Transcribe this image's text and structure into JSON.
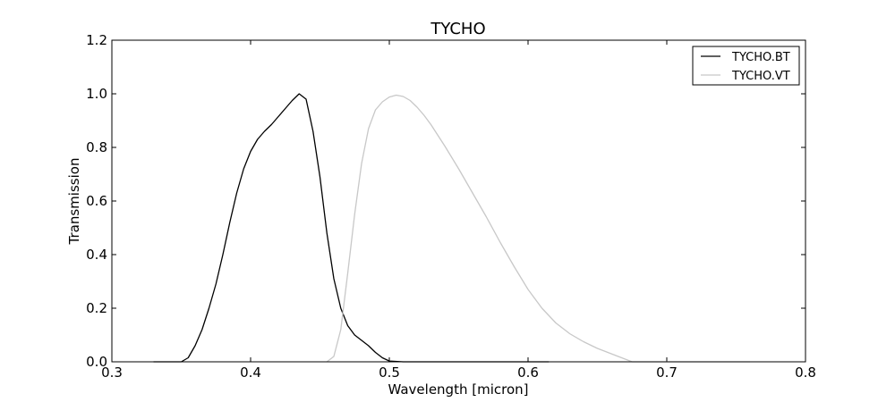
{
  "chart_data": {
    "type": "line",
    "title": "TYCHO",
    "xlabel": "Wavelength [micron]",
    "ylabel": "Transmission",
    "xlim": [
      0.3,
      0.8
    ],
    "ylim": [
      0.0,
      1.2
    ],
    "xticks": [
      "0.3",
      "0.4",
      "0.5",
      "0.6",
      "0.7",
      "0.8"
    ],
    "yticks": [
      "0.0",
      "0.2",
      "0.4",
      "0.6",
      "0.8",
      "1.0",
      "1.2"
    ],
    "grid": false,
    "legend": "top-right",
    "series": [
      {
        "name": "TYCHO.BT",
        "color": "#000000",
        "points": [
          [
            0.33,
            0.0
          ],
          [
            0.35,
            0.0
          ],
          [
            0.355,
            0.015
          ],
          [
            0.36,
            0.06
          ],
          [
            0.365,
            0.12
          ],
          [
            0.37,
            0.2
          ],
          [
            0.375,
            0.29
          ],
          [
            0.38,
            0.4
          ],
          [
            0.385,
            0.52
          ],
          [
            0.39,
            0.63
          ],
          [
            0.395,
            0.72
          ],
          [
            0.4,
            0.785
          ],
          [
            0.405,
            0.83
          ],
          [
            0.41,
            0.86
          ],
          [
            0.415,
            0.885
          ],
          [
            0.42,
            0.915
          ],
          [
            0.425,
            0.945
          ],
          [
            0.43,
            0.975
          ],
          [
            0.435,
            1.0
          ],
          [
            0.44,
            0.98
          ],
          [
            0.445,
            0.86
          ],
          [
            0.45,
            0.69
          ],
          [
            0.455,
            0.48
          ],
          [
            0.46,
            0.31
          ],
          [
            0.465,
            0.2
          ],
          [
            0.47,
            0.135
          ],
          [
            0.475,
            0.1
          ],
          [
            0.48,
            0.08
          ],
          [
            0.485,
            0.06
          ],
          [
            0.49,
            0.035
          ],
          [
            0.495,
            0.015
          ],
          [
            0.5,
            0.003
          ],
          [
            0.51,
            0.0
          ],
          [
            0.55,
            0.0
          ],
          [
            0.615,
            0.0
          ]
        ]
      },
      {
        "name": "TYCHO.VT",
        "color": "#c8c8c8",
        "points": [
          [
            0.455,
            0.0
          ],
          [
            0.46,
            0.02
          ],
          [
            0.465,
            0.12
          ],
          [
            0.47,
            0.33
          ],
          [
            0.475,
            0.55
          ],
          [
            0.48,
            0.74
          ],
          [
            0.485,
            0.87
          ],
          [
            0.49,
            0.94
          ],
          [
            0.495,
            0.97
          ],
          [
            0.5,
            0.988
          ],
          [
            0.505,
            0.995
          ],
          [
            0.51,
            0.99
          ],
          [
            0.515,
            0.975
          ],
          [
            0.52,
            0.95
          ],
          [
            0.525,
            0.92
          ],
          [
            0.53,
            0.885
          ],
          [
            0.54,
            0.805
          ],
          [
            0.55,
            0.72
          ],
          [
            0.56,
            0.63
          ],
          [
            0.57,
            0.54
          ],
          [
            0.58,
            0.445
          ],
          [
            0.59,
            0.355
          ],
          [
            0.6,
            0.27
          ],
          [
            0.61,
            0.2
          ],
          [
            0.62,
            0.145
          ],
          [
            0.63,
            0.105
          ],
          [
            0.64,
            0.075
          ],
          [
            0.65,
            0.05
          ],
          [
            0.66,
            0.03
          ],
          [
            0.67,
            0.01
          ],
          [
            0.675,
            0.0
          ],
          [
            0.7,
            0.0
          ],
          [
            0.76,
            0.0
          ]
        ]
      }
    ]
  }
}
